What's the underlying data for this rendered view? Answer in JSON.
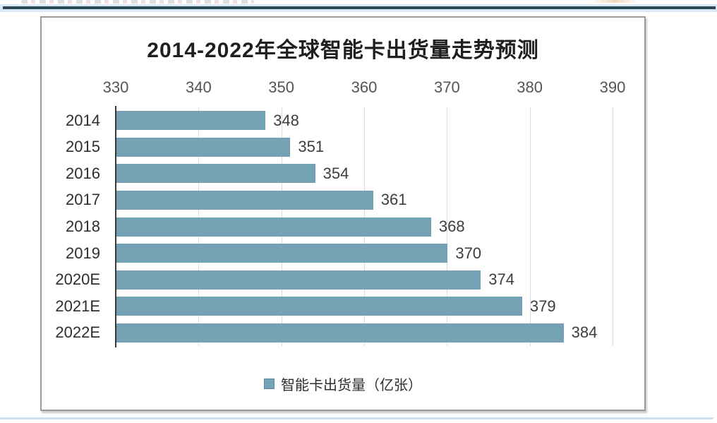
{
  "page": {
    "top_divider_color": "#2b4759",
    "top_divider_halo_color": "#d9eaf6",
    "bottom_divider_color": "#cde1f0",
    "panel_border_color": "#9b9b9b",
    "background_color": "#ffffff"
  },
  "chart_data": {
    "type": "bar",
    "orientation": "horizontal",
    "title": "2014-2022年全球智能卡出货量走势预测",
    "categories": [
      "2014",
      "2015",
      "2016",
      "2017",
      "2018",
      "2019",
      "2020E",
      "2021E",
      "2022E"
    ],
    "values": [
      348,
      351,
      354,
      361,
      368,
      370,
      374,
      379,
      384
    ],
    "legend": "智能卡出货量（亿张）",
    "unit": "亿张",
    "xlim": [
      330,
      390
    ],
    "xticks": [
      330,
      340,
      350,
      360,
      370,
      380,
      390
    ],
    "grid": true,
    "legend_position": "bottom",
    "data_labels": true,
    "colors": {
      "bar": "#74a1b4",
      "legend_marker": "#74a4ba",
      "title": "#1f1f1f",
      "tick_label": "#555555",
      "category_label": "#2e2e2e",
      "value_label": "#3d3d3d",
      "axis": "#3a3a3a",
      "gridline": "#dcdcdc"
    }
  }
}
